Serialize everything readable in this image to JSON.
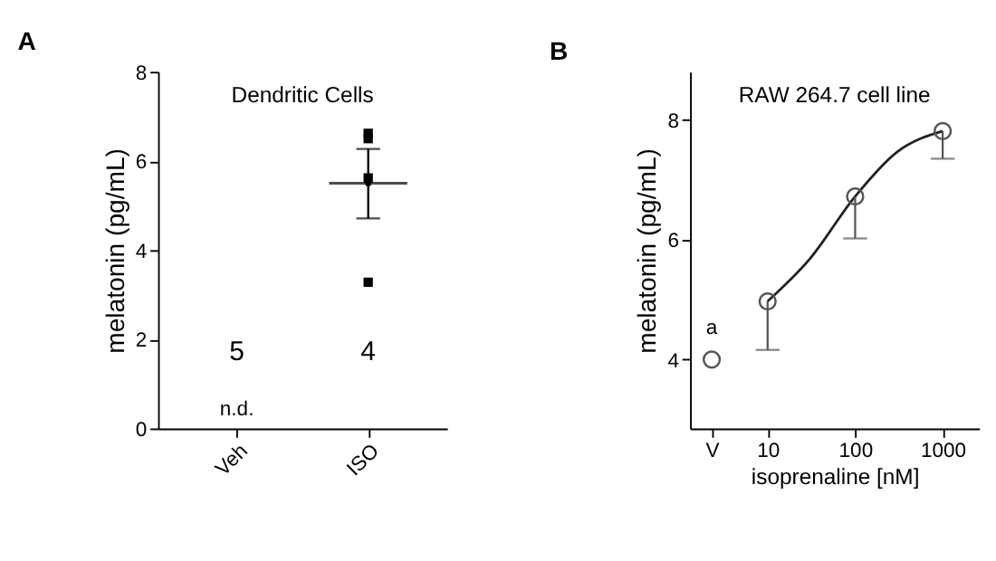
{
  "chart_data": [
    {
      "type": "scatter",
      "title": "A",
      "subtitle": "Dendritic Cells",
      "ylabel": "melatonin (pg/mL)",
      "categories": [
        "Veh",
        "ISO"
      ],
      "ylim": [
        0,
        8
      ],
      "yticks": [
        0,
        2,
        4,
        6,
        8
      ],
      "grid": false,
      "series": [
        {
          "x": [
            "ISO",
            "ISO",
            "ISO",
            "ISO"
          ],
          "values": [
            6.5,
            6.62,
            5.62,
            3.28
          ],
          "color": "#000000",
          "marker": "square"
        },
        {
          "x": [
            "ISO"
          ],
          "values": [
            5.5
          ],
          "errors": [
            [
              4.71,
              6.27
            ]
          ],
          "color": "#000000"
        }
      ],
      "ref_lines": [
        {
          "axis": "y",
          "value": 5.5,
          "color": "#000000"
        }
      ],
      "annotations": [
        "5",
        "4",
        "n.d."
      ]
    },
    {
      "type": "scatter",
      "title": "B",
      "subtitle": "RAW 264.7 cell line",
      "xlabel": "isoprenaline [nM]",
      "ylabel": "melatonin (pg/mL)",
      "log": "x",
      "xlim": [
        1.3,
        2600
      ],
      "xticks": [
        {
          "value": 2.3,
          "label": "V"
        },
        10,
        100,
        1000
      ],
      "ylim": [
        2.85,
        8.8
      ],
      "yticks": [
        4,
        6,
        8
      ],
      "grid": false,
      "series": [
        {
          "type": "line",
          "x": [
            10,
            30,
            100,
            300,
            1000
          ],
          "values": [
            4.97,
            5.67,
            6.72,
            7.46,
            7.81
          ],
          "color": "#222222",
          "marker": "none"
        },
        {
          "x": [
            2.3,
            10,
            100,
            1000
          ],
          "values": [
            4.0,
            4.97,
            6.72,
            7.81
          ],
          "errors": [
            null,
            [
              4.16,
              4.97
            ],
            [
              6.02,
              6.72
            ],
            [
              7.35,
              7.81
            ]
          ],
          "color": "#555555",
          "marker": "circle"
        }
      ],
      "annotations": [
        "a"
      ]
    }
  ]
}
